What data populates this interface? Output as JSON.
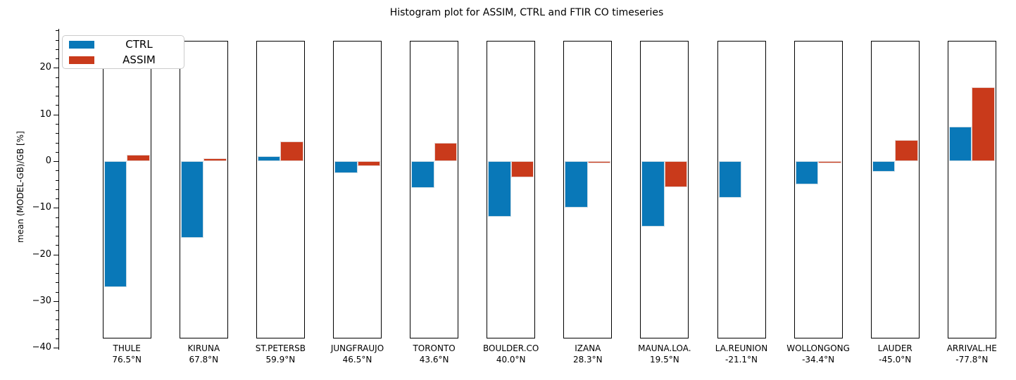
{
  "chart_data": {
    "type": "bar",
    "title": "Histogram plot for ASSIM, CTRL and FTIR CO timeseries",
    "ylabel": "mean (MODEL-GB)/GB [%]",
    "ylim": [
      -40,
      26
    ],
    "yticks": [
      20,
      10,
      0,
      -10,
      -20,
      -30,
      -40
    ],
    "minor_tick_step": 2,
    "grid": false,
    "legend_position": "upper left",
    "categories": [
      {
        "name": "THULE",
        "lat": "76.5°N"
      },
      {
        "name": "KIRUNA",
        "lat": "67.8°N"
      },
      {
        "name": "ST.PETERSB",
        "lat": "59.9°N"
      },
      {
        "name": "JUNGFRAUJO",
        "lat": "46.5°N"
      },
      {
        "name": "TORONTO",
        "lat": "43.6°N"
      },
      {
        "name": "BOULDER.CO",
        "lat": "40.0°N"
      },
      {
        "name": "IZANA",
        "lat": "28.3°N"
      },
      {
        "name": "MAUNA.LOA.",
        "lat": "19.5°N"
      },
      {
        "name": "LA.REUNION",
        "lat": "-21.1°N"
      },
      {
        "name": "WOLLONGONG",
        "lat": "-34.4°N"
      },
      {
        "name": "LAUDER",
        "lat": "-45.0°N"
      },
      {
        "name": "ARRIVAL.HE",
        "lat": "-77.8°N"
      }
    ],
    "series": [
      {
        "name": "CTRL",
        "color": "#0978b8",
        "values": [
          -27.0,
          -16.4,
          1.0,
          -2.6,
          -5.7,
          -11.9,
          -10.0,
          -14.0,
          -7.8,
          -4.9,
          -2.3,
          7.4
        ]
      },
      {
        "name": "ASSIM",
        "color": "#c93a1b",
        "values": [
          1.3,
          0.6,
          4.2,
          -1.0,
          4.0,
          -3.4,
          -0.4,
          -5.6,
          0.0,
          -0.4,
          4.5,
          15.9
        ]
      }
    ]
  }
}
